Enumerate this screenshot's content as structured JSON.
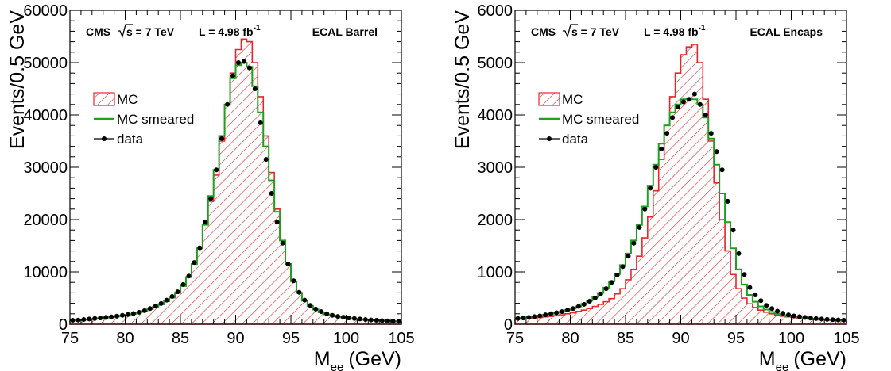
{
  "chart_data": [
    {
      "type": "histogram",
      "panel_title": "ECAL Barrel",
      "header": {
        "experiment": "CMS",
        "energy": "s = 7 TeV",
        "lumi_base": "L = 4.98 fb",
        "lumi_exp": "-1",
        "region": "ECAL Barrel"
      },
      "xlabel": "M",
      "xlabel_sub": "ee",
      "xlabel_unit": "(GeV)",
      "ylabel": "Events/0.5 GeV",
      "xlim": [
        75,
        105
      ],
      "ylim": [
        0,
        60000
      ],
      "xticks": [
        "75",
        "80",
        "85",
        "90",
        "95",
        "100",
        "105"
      ],
      "yticks": [
        "0",
        "10000",
        "20000",
        "30000",
        "40000",
        "50000",
        "60000"
      ],
      "bin_width": 0.5,
      "legend": {
        "placement": "top-left",
        "mc": "MC",
        "smeared": "MC smeared",
        "data": "data"
      },
      "colors": {
        "mc": "#e8262a",
        "smeared": "#1fa11f",
        "data": "#000000"
      },
      "series": [
        {
          "name": "MC",
          "style": "hatched-histogram",
          "x": [
            75.25,
            75.75,
            76.25,
            76.75,
            77.25,
            77.75,
            78.25,
            78.75,
            79.25,
            79.75,
            80.25,
            80.75,
            81.25,
            81.75,
            82.25,
            82.75,
            83.25,
            83.75,
            84.25,
            84.75,
            85.25,
            85.75,
            86.25,
            86.75,
            87.25,
            87.75,
            88.25,
            88.75,
            89.25,
            89.75,
            90.25,
            90.75,
            91.25,
            91.75,
            92.25,
            92.75,
            93.25,
            93.75,
            94.25,
            94.75,
            95.25,
            95.75,
            96.25,
            96.75,
            97.25,
            97.75,
            98.25,
            98.75,
            99.25,
            99.75,
            100.25,
            100.75,
            101.25,
            101.75,
            102.25,
            102.75,
            103.25,
            103.75,
            104.25,
            104.75
          ],
          "values": [
            700,
            750,
            850,
            950,
            1050,
            1150,
            1250,
            1350,
            1500,
            1650,
            1800,
            2000,
            2250,
            2500,
            2900,
            3300,
            3800,
            4400,
            5100,
            6000,
            7300,
            9000,
            11500,
            14500,
            19000,
            23500,
            28500,
            35000,
            42000,
            48000,
            52500,
            54500,
            54000,
            50000,
            43500,
            36000,
            29000,
            22000,
            16000,
            11500,
            8200,
            6000,
            4500,
            3500,
            2800,
            2300,
            1900,
            1650,
            1450,
            1300,
            1150,
            1050,
            950,
            850,
            780,
            720,
            660,
            610,
            570,
            540
          ]
        },
        {
          "name": "MC smeared",
          "style": "step-line",
          "x": [
            75.25,
            75.75,
            76.25,
            76.75,
            77.25,
            77.75,
            78.25,
            78.75,
            79.25,
            79.75,
            80.25,
            80.75,
            81.25,
            81.75,
            82.25,
            82.75,
            83.25,
            83.75,
            84.25,
            84.75,
            85.25,
            85.75,
            86.25,
            86.75,
            87.25,
            87.75,
            88.25,
            88.75,
            89.25,
            89.75,
            90.25,
            90.75,
            91.25,
            91.75,
            92.25,
            92.75,
            93.25,
            93.75,
            94.25,
            94.75,
            95.25,
            95.75,
            96.25,
            96.75,
            97.25,
            97.75,
            98.25,
            98.75,
            99.25,
            99.75,
            100.25,
            100.75,
            101.25,
            101.75,
            102.25,
            102.75,
            103.25,
            103.75,
            104.25,
            104.75
          ],
          "values": [
            700,
            750,
            850,
            950,
            1050,
            1150,
            1250,
            1350,
            1500,
            1650,
            1800,
            2000,
            2250,
            2500,
            2900,
            3300,
            3800,
            4400,
            5100,
            6000,
            7300,
            9000,
            11500,
            14500,
            19000,
            24500,
            29500,
            36000,
            42000,
            47000,
            49500,
            50000,
            49200,
            45500,
            40500,
            34000,
            27500,
            21500,
            16000,
            11500,
            8200,
            6000,
            4500,
            3500,
            2800,
            2300,
            1900,
            1650,
            1450,
            1300,
            1150,
            1050,
            950,
            850,
            780,
            720,
            660,
            610,
            570,
            540
          ]
        },
        {
          "name": "data",
          "style": "points",
          "x": [
            75.25,
            75.75,
            76.25,
            76.75,
            77.25,
            77.75,
            78.25,
            78.75,
            79.25,
            79.75,
            80.25,
            80.75,
            81.25,
            81.75,
            82.25,
            82.75,
            83.25,
            83.75,
            84.25,
            84.75,
            85.25,
            85.75,
            86.25,
            86.75,
            87.25,
            87.75,
            88.25,
            88.75,
            89.25,
            89.75,
            90.25,
            90.75,
            91.25,
            91.75,
            92.25,
            92.75,
            93.25,
            93.75,
            94.25,
            94.75,
            95.25,
            95.75,
            96.25,
            96.75,
            97.25,
            97.75,
            98.25,
            98.75,
            99.25,
            99.75,
            100.25,
            100.75,
            101.25,
            101.75,
            102.25,
            102.75,
            103.25,
            103.75,
            104.25,
            104.75
          ],
          "values": [
            750,
            800,
            900,
            1000,
            1100,
            1200,
            1300,
            1400,
            1550,
            1700,
            1850,
            2050,
            2300,
            2600,
            3000,
            3450,
            3950,
            4600,
            5300,
            6200,
            7600,
            9200,
            11800,
            14600,
            19500,
            24000,
            29500,
            35500,
            42000,
            47500,
            50000,
            50200,
            49000,
            45000,
            38500,
            31500,
            25000,
            19500,
            15500,
            11500,
            8300,
            6100,
            4600,
            3600,
            2900,
            2400,
            2000,
            1700,
            1500,
            1350,
            1200,
            1100,
            1000,
            900,
            820,
            750,
            690,
            640,
            600,
            560
          ]
        }
      ]
    },
    {
      "type": "histogram",
      "panel_title": "ECAL Encaps",
      "header": {
        "experiment": "CMS",
        "energy": "s = 7 TeV",
        "lumi_base": "L = 4.98 fb",
        "lumi_exp": "-1",
        "region": "ECAL Encaps"
      },
      "xlabel": "M",
      "xlabel_sub": "ee",
      "xlabel_unit": "(GeV)",
      "ylabel": "Events/0.5 GeV",
      "xlim": [
        75,
        105
      ],
      "ylim": [
        0,
        6000
      ],
      "xticks": [
        "75",
        "80",
        "85",
        "90",
        "95",
        "100",
        "105"
      ],
      "yticks": [
        "0",
        "1000",
        "2000",
        "3000",
        "4000",
        "5000",
        "6000"
      ],
      "bin_width": 0.5,
      "legend": {
        "placement": "top-left",
        "mc": "MC",
        "smeared": "MC smeared",
        "data": "data"
      },
      "colors": {
        "mc": "#e8262a",
        "smeared": "#1fa11f",
        "data": "#000000"
      },
      "series": [
        {
          "name": "MC",
          "style": "hatched-histogram",
          "x": [
            75.25,
            75.75,
            76.25,
            76.75,
            77.25,
            77.75,
            78.25,
            78.75,
            79.25,
            79.75,
            80.25,
            80.75,
            81.25,
            81.75,
            82.25,
            82.75,
            83.25,
            83.75,
            84.25,
            84.75,
            85.25,
            85.75,
            86.25,
            86.75,
            87.25,
            87.75,
            88.25,
            88.75,
            89.25,
            89.75,
            90.25,
            90.75,
            91.25,
            91.75,
            92.25,
            92.75,
            93.25,
            93.75,
            94.25,
            94.75,
            95.25,
            95.75,
            96.25,
            96.75,
            97.25,
            97.75,
            98.25,
            98.75,
            99.25,
            99.75,
            100.25,
            100.75,
            101.25,
            101.75,
            102.25,
            102.75,
            103.25,
            103.75,
            104.25,
            104.75
          ],
          "values": [
            100,
            105,
            110,
            120,
            130,
            140,
            150,
            165,
            180,
            200,
            220,
            245,
            270,
            300,
            340,
            380,
            430,
            490,
            580,
            680,
            850,
            1050,
            1300,
            1650,
            2050,
            2550,
            3150,
            3800,
            4350,
            4800,
            5150,
            5300,
            5350,
            5000,
            4300,
            3500,
            2700,
            2000,
            1400,
            950,
            680,
            500,
            390,
            320,
            270,
            230,
            200,
            175,
            155,
            140,
            125,
            115,
            105,
            95,
            88,
            82,
            76,
            72,
            68,
            65
          ]
        },
        {
          "name": "MC smeared",
          "style": "step-line",
          "x": [
            75.25,
            75.75,
            76.25,
            76.75,
            77.25,
            77.75,
            78.25,
            78.75,
            79.25,
            79.75,
            80.25,
            80.75,
            81.25,
            81.75,
            82.25,
            82.75,
            83.25,
            83.75,
            84.25,
            84.75,
            85.25,
            85.75,
            86.25,
            86.75,
            87.25,
            87.75,
            88.25,
            88.75,
            89.25,
            89.75,
            90.25,
            90.75,
            91.25,
            91.75,
            92.25,
            92.75,
            93.25,
            93.75,
            94.25,
            94.75,
            95.25,
            95.75,
            96.25,
            96.75,
            97.25,
            97.75,
            98.25,
            98.75,
            99.25,
            99.75,
            100.25,
            100.75,
            101.25,
            101.75,
            102.25,
            102.75,
            103.25,
            103.75,
            104.25,
            104.75
          ],
          "values": [
            110,
            120,
            135,
            150,
            165,
            180,
            200,
            220,
            240,
            270,
            300,
            340,
            390,
            450,
            520,
            600,
            700,
            820,
            960,
            1130,
            1350,
            1600,
            1900,
            2250,
            2650,
            3050,
            3450,
            3800,
            4050,
            4200,
            4300,
            4320,
            4300,
            4200,
            3950,
            3550,
            3050,
            2500,
            1950,
            1450,
            1050,
            760,
            560,
            430,
            340,
            280,
            235,
            200,
            175,
            155,
            140,
            128,
            118,
            108,
            100,
            93,
            87,
            82,
            78,
            75
          ]
        },
        {
          "name": "data",
          "style": "points",
          "x": [
            75.25,
            75.75,
            76.25,
            76.75,
            77.25,
            77.75,
            78.25,
            78.75,
            79.25,
            79.75,
            80.25,
            80.75,
            81.25,
            81.75,
            82.25,
            82.75,
            83.25,
            83.75,
            84.25,
            84.75,
            85.25,
            85.75,
            86.25,
            86.75,
            87.25,
            87.75,
            88.25,
            88.75,
            89.25,
            89.75,
            90.25,
            90.75,
            91.25,
            91.75,
            92.25,
            92.75,
            93.25,
            93.75,
            94.25,
            94.75,
            95.25,
            95.75,
            96.25,
            96.75,
            97.25,
            97.75,
            98.25,
            98.75,
            99.25,
            99.75,
            100.25,
            100.75,
            101.25,
            101.75,
            102.25,
            102.75,
            103.25,
            103.75,
            104.25,
            104.75
          ],
          "values": [
            110,
            120,
            130,
            145,
            160,
            180,
            200,
            220,
            240,
            270,
            300,
            340,
            380,
            440,
            500,
            580,
            680,
            800,
            940,
            1100,
            1300,
            1550,
            1850,
            2200,
            2600,
            3000,
            3350,
            3650,
            3950,
            4150,
            4250,
            4300,
            4400,
            4200,
            4000,
            3650,
            3300,
            2950,
            2350,
            1800,
            1350,
            950,
            700,
            560,
            450,
            360,
            300,
            250,
            210,
            180,
            160,
            145,
            130,
            118,
            108,
            100,
            93,
            87,
            82,
            78
          ]
        }
      ]
    }
  ]
}
